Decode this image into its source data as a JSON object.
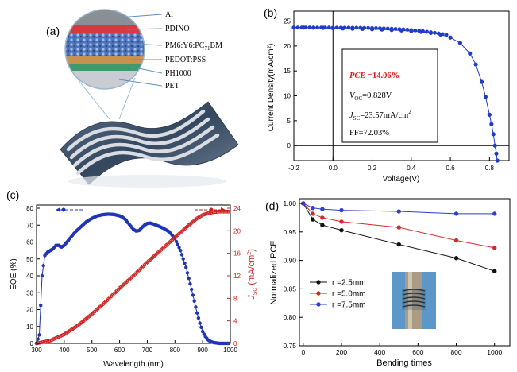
{
  "panel_a": {
    "tag": "(a)",
    "layers": [
      {
        "label": "Al",
        "color": "#8a8f96"
      },
      {
        "label": "PDINO",
        "color": "#d9383e"
      },
      {
        "label": "PM6:Y6:PC",
        "sub": "71",
        "suffix": "BM",
        "color": "#4f73b8"
      },
      {
        "label": "PEDOT:PSS",
        "color": "#c79250"
      },
      {
        "label": "PH1000",
        "color": "#3d9a6a"
      },
      {
        "label": "PET",
        "color": "#c9ccd2"
      }
    ]
  },
  "chart_data": [
    {
      "type": "line",
      "tag": "(b)",
      "xlabel": "Voltage(V)",
      "ylabel": "Current Density(mA/cm²)",
      "xlim": [
        -0.2,
        0.9
      ],
      "ylim": [
        -3,
        27
      ],
      "xticks": [
        "-0.2",
        "0.0",
        "0.2",
        "0.4",
        "0.6",
        "0.8"
      ],
      "yticks": [
        "0",
        "5",
        "10",
        "15",
        "20",
        "25"
      ],
      "series": [
        {
          "color": "#1f3cc7",
          "x": [
            -0.2,
            -0.15,
            -0.1,
            -0.05,
            0.0,
            0.05,
            0.1,
            0.15,
            0.2,
            0.25,
            0.3,
            0.35,
            0.4,
            0.45,
            0.5,
            0.55,
            0.6,
            0.65,
            0.7,
            0.73,
            0.76,
            0.78,
            0.8,
            0.81,
            0.82,
            0.828,
            0.835,
            0.84
          ],
          "y": [
            23.7,
            23.7,
            23.68,
            23.65,
            23.57,
            23.52,
            23.47,
            23.42,
            23.37,
            23.3,
            23.22,
            23.12,
            23.0,
            22.85,
            22.63,
            22.3,
            21.7,
            20.6,
            18.5,
            16.3,
            12.8,
            9.8,
            6.2,
            4.3,
            2.3,
            0.0,
            -1.6,
            -3.0
          ]
        }
      ],
      "annotation": {
        "pce_label": "PCE",
        "pce_value": " =14.06%",
        "voc_label": "V",
        "voc_sub": "OC",
        "voc_value": "=0.828V",
        "jsc_label": "J",
        "jsc_sub": "SC",
        "jsc_value": "=23.57mA/cm",
        "jsc_sup": "2",
        "ff": "FF=72.03%"
      }
    },
    {
      "type": "line",
      "tag": "(c)",
      "xlabel": "Wavelength (nm)",
      "ylabel_left": "EQE (%)",
      "ylabel_right_main": "J",
      "ylabel_right_sub": "SC",
      "ylabel_right_rest": " (mA/cm",
      "ylabel_right_sup": "2",
      "ylabel_right_end": ")",
      "xlim": [
        300,
        1000
      ],
      "ylim_left": [
        0,
        80
      ],
      "ylim_right": [
        0,
        24
      ],
      "xticks": [
        "300",
        "400",
        "500",
        "600",
        "700",
        "800",
        "900",
        "1000"
      ],
      "yticks_left": [
        "0",
        "10",
        "20",
        "30",
        "40",
        "50",
        "60",
        "70",
        "80"
      ],
      "yticks_right": [
        "0",
        "4",
        "8",
        "12",
        "16",
        "20",
        "24"
      ],
      "series": [
        {
          "color": "#1f35b5",
          "axis": "left",
          "x": [
            300,
            310,
            320,
            330,
            340,
            350,
            360,
            370,
            380,
            390,
            400,
            420,
            440,
            460,
            480,
            500,
            520,
            540,
            560,
            580,
            600,
            610,
            620,
            630,
            640,
            650,
            660,
            670,
            680,
            690,
            700,
            710,
            720,
            740,
            760,
            780,
            800,
            820,
            840,
            860,
            870,
            880,
            890,
            900,
            910,
            920,
            930,
            940,
            960,
            980,
            1000
          ],
          "y": [
            0,
            5,
            40,
            52,
            54,
            55,
            56,
            58,
            58,
            57,
            58,
            62,
            66,
            69,
            72,
            74,
            75.5,
            76.2,
            76.5,
            76.3,
            75.5,
            74.8,
            73.5,
            71.5,
            69.5,
            67.5,
            66.5,
            66.8,
            68.5,
            70,
            71,
            71.2,
            70.8,
            69.5,
            68,
            66,
            62,
            55,
            45,
            32,
            25,
            18,
            12,
            7,
            4,
            2,
            1,
            0.5,
            0,
            0,
            0
          ]
        },
        {
          "color": "#cc1f1f",
          "axis": "right",
          "x": [
            300,
            350,
            400,
            450,
            500,
            550,
            600,
            650,
            700,
            750,
            800,
            850,
            880,
            900,
            920,
            940,
            960,
            980,
            1000
          ],
          "y": [
            0,
            0.5,
            1.6,
            3.2,
            5.2,
            7.4,
            9.8,
            12.0,
            14.4,
            16.6,
            18.8,
            21.0,
            22.2,
            22.8,
            23.1,
            23.3,
            23.4,
            23.4,
            23.4
          ]
        }
      ]
    },
    {
      "type": "line",
      "tag": "(d)",
      "xlabel": "Bending times",
      "ylabel": "Normalized PCE",
      "xlim": [
        -20,
        1080
      ],
      "ylim": [
        0.75,
        1.0
      ],
      "xticks": [
        "0",
        "200",
        "400",
        "600",
        "800",
        "1000"
      ],
      "yticks": [
        "0.75",
        "0.80",
        "0.85",
        "0.90",
        "0.95",
        "1.00"
      ],
      "legend": "bottom-left",
      "series": [
        {
          "name": "r =2.5mm",
          "color": "#111111",
          "x": [
            0,
            50,
            100,
            200,
            500,
            800,
            1000
          ],
          "y": [
            1.0,
            0.972,
            0.962,
            0.953,
            0.928,
            0.904,
            0.881
          ]
        },
        {
          "name": "r =5.0mm",
          "color": "#d62a2a",
          "x": [
            0,
            50,
            100,
            200,
            500,
            800,
            1000
          ],
          "y": [
            1.0,
            0.982,
            0.975,
            0.968,
            0.958,
            0.935,
            0.922
          ]
        },
        {
          "name": "r =7.5mm",
          "color": "#2f3fd0",
          "x": [
            0,
            50,
            100,
            200,
            500,
            800,
            1000
          ],
          "y": [
            1.0,
            0.992,
            0.99,
            0.988,
            0.986,
            0.982,
            0.982
          ]
        }
      ]
    }
  ]
}
